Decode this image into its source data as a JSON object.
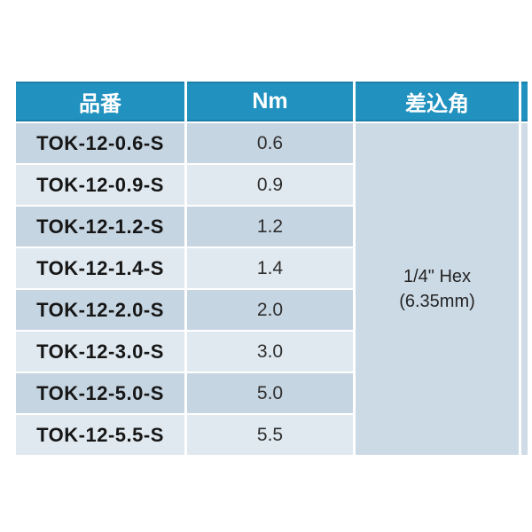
{
  "table": {
    "headers": [
      {
        "label": "品番"
      },
      {
        "label": "Nm"
      },
      {
        "label": "差込角"
      }
    ],
    "rows": [
      {
        "part": "TOK-12-0.6-S",
        "nm": "0.6"
      },
      {
        "part": "TOK-12-0.9-S",
        "nm": "0.9"
      },
      {
        "part": "TOK-12-1.2-S",
        "nm": "1.2"
      },
      {
        "part": "TOK-12-1.4-S",
        "nm": "1.4"
      },
      {
        "part": "TOK-12-2.0-S",
        "nm": "2.0"
      },
      {
        "part": "TOK-12-3.0-S",
        "nm": "3.0"
      },
      {
        "part": "TOK-12-5.0-S",
        "nm": "5.0"
      },
      {
        "part": "TOK-12-5.5-S",
        "nm": "5.5"
      }
    ],
    "drive_size": {
      "line1": "1/4\" Hex",
      "line2": "(6.35mm)"
    },
    "colors": {
      "header_bg": "#2191bf",
      "header_text": "#ffffff",
      "row_odd_bg": "#c6d5e2",
      "row_even_bg": "#e0e9f0",
      "merged_bg": "#ccdae6",
      "sliver_bg": "#cfdce7"
    }
  }
}
